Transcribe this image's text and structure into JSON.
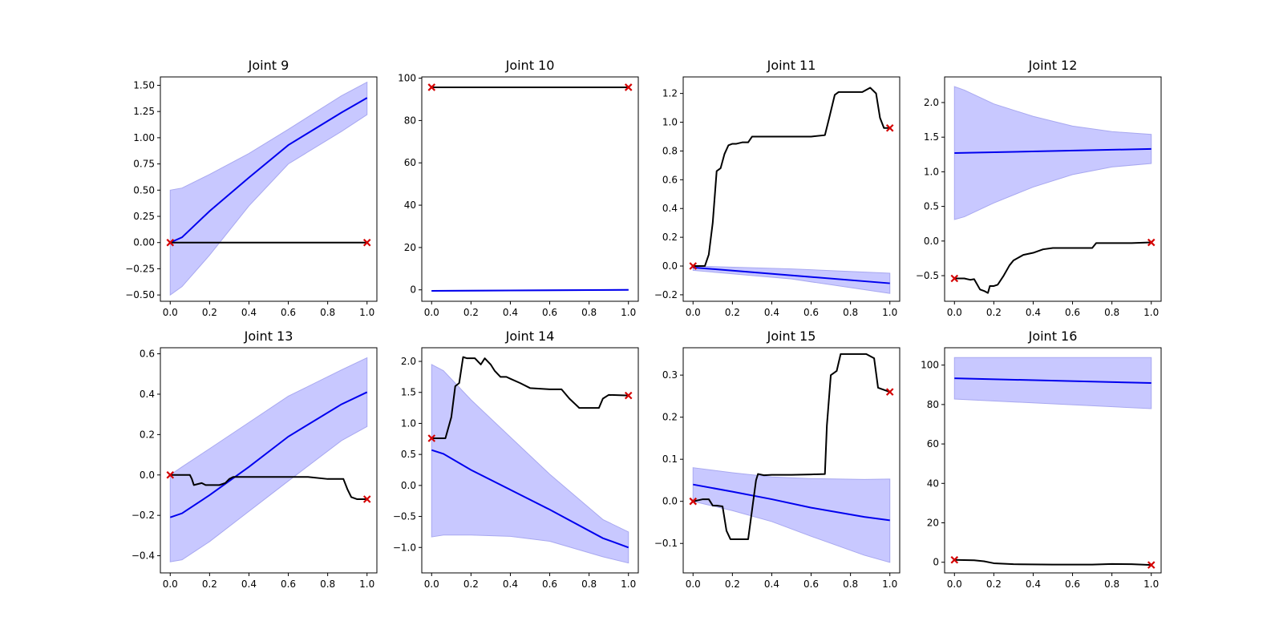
{
  "chart_data": [
    {
      "type": "line",
      "title": "Joint 9",
      "xlim": [
        -0.05,
        1.05
      ],
      "ylim": [
        -0.56,
        1.58
      ],
      "xticks": [
        0.0,
        0.2,
        0.4,
        0.6,
        0.8,
        1.0
      ],
      "xtick_labels": [
        "0.0",
        "0.2",
        "0.4",
        "0.6",
        "0.8",
        "1.0"
      ],
      "yticks": [
        -0.5,
        -0.25,
        0.0,
        0.25,
        0.5,
        0.75,
        1.0,
        1.25,
        1.5
      ],
      "ytick_labels": [
        "−0.50",
        "−0.25",
        "0.00",
        "0.25",
        "0.50",
        "0.75",
        "1.00",
        "1.25",
        "1.50"
      ],
      "mean": {
        "x": [
          0,
          0.06,
          0.2,
          0.4,
          0.6,
          0.87,
          1.0
        ],
        "y": [
          0.0,
          0.05,
          0.3,
          0.62,
          0.93,
          1.24,
          1.38
        ]
      },
      "band": {
        "x": [
          0,
          0.06,
          0.2,
          0.4,
          0.6,
          0.87,
          1.0
        ],
        "upper": [
          0.5,
          0.52,
          0.65,
          0.85,
          1.08,
          1.4,
          1.53
        ],
        "lower": [
          -0.5,
          -0.42,
          -0.12,
          0.35,
          0.75,
          1.06,
          1.22
        ]
      },
      "trajectory": {
        "x": [
          0,
          1.0
        ],
        "y": [
          0.0,
          0.0
        ]
      },
      "markers": {
        "x": [
          0,
          1.0
        ],
        "y": [
          0.0,
          0.0
        ]
      }
    },
    {
      "type": "line",
      "title": "Joint 10",
      "xlim": [
        -0.05,
        1.05
      ],
      "ylim": [
        -5.4,
        100.6
      ],
      "xticks": [
        0.0,
        0.2,
        0.4,
        0.6,
        0.8,
        1.0
      ],
      "xtick_labels": [
        "0.0",
        "0.2",
        "0.4",
        "0.6",
        "0.8",
        "1.0"
      ],
      "yticks": [
        0,
        20,
        40,
        60,
        80,
        100
      ],
      "ytick_labels": [
        "0",
        "20",
        "40",
        "60",
        "80",
        "100"
      ],
      "mean": {
        "x": [
          0,
          1.0
        ],
        "y": [
          -0.5,
          0.0
        ]
      },
      "band": {
        "x": [
          0,
          1.0
        ],
        "upper": [
          -0.3,
          0.2
        ],
        "lower": [
          -0.7,
          -0.2
        ]
      },
      "trajectory": {
        "x": [
          0,
          1.0
        ],
        "y": [
          95.7,
          95.7
        ]
      },
      "markers": {
        "x": [
          0,
          1.0
        ],
        "y": [
          95.7,
          95.7
        ]
      }
    },
    {
      "type": "line",
      "title": "Joint 11",
      "xlim": [
        -0.05,
        1.05
      ],
      "ylim": [
        -0.245,
        1.315
      ],
      "xticks": [
        0.0,
        0.2,
        0.4,
        0.6,
        0.8,
        1.0
      ],
      "xtick_labels": [
        "0.0",
        "0.2",
        "0.4",
        "0.6",
        "0.8",
        "1.0"
      ],
      "yticks": [
        -0.2,
        0.0,
        0.2,
        0.4,
        0.6,
        0.8,
        1.0,
        1.2
      ],
      "ytick_labels": [
        "−0.2",
        "0.0",
        "0.2",
        "0.4",
        "0.6",
        "0.8",
        "1.0",
        "1.2"
      ],
      "mean": {
        "x": [
          0,
          1.0
        ],
        "y": [
          -0.01,
          -0.12
        ]
      },
      "band": {
        "x": [
          0,
          0.5,
          1.0
        ],
        "upper": [
          0.0,
          -0.02,
          -0.05
        ],
        "lower": [
          -0.03,
          -0.09,
          -0.19
        ]
      },
      "trajectory": {
        "x": [
          0,
          0.06,
          0.08,
          0.1,
          0.12,
          0.14,
          0.16,
          0.18,
          0.2,
          0.22,
          0.25,
          0.28,
          0.3,
          0.32,
          0.35,
          0.4,
          0.5,
          0.6,
          0.67,
          0.69,
          0.72,
          0.74,
          0.8,
          0.86,
          0.9,
          0.93,
          0.95,
          0.97,
          1.0
        ],
        "y": [
          0.0,
          0.0,
          0.08,
          0.3,
          0.66,
          0.68,
          0.78,
          0.84,
          0.85,
          0.85,
          0.86,
          0.86,
          0.9,
          0.9,
          0.9,
          0.9,
          0.9,
          0.9,
          0.91,
          1.02,
          1.19,
          1.21,
          1.21,
          1.21,
          1.24,
          1.2,
          1.03,
          0.96,
          0.96
        ]
      },
      "markers": {
        "x": [
          0,
          1.0
        ],
        "y": [
          0.0,
          0.96
        ]
      }
    },
    {
      "type": "line",
      "title": "Joint 12",
      "xlim": [
        -0.05,
        1.05
      ],
      "ylim": [
        -0.87,
        2.37
      ],
      "xticks": [
        0.0,
        0.2,
        0.4,
        0.6,
        0.8,
        1.0
      ],
      "xtick_labels": [
        "0.0",
        "0.2",
        "0.4",
        "0.6",
        "0.8",
        "1.0"
      ],
      "yticks": [
        -0.5,
        0.0,
        0.5,
        1.0,
        1.5,
        2.0
      ],
      "ytick_labels": [
        "−0.5",
        "0.0",
        "0.5",
        "1.0",
        "1.5",
        "2.0"
      ],
      "mean": {
        "x": [
          0,
          1.0
        ],
        "y": [
          1.27,
          1.33
        ]
      },
      "band": {
        "x": [
          0,
          0.05,
          0.2,
          0.4,
          0.6,
          0.8,
          1.0
        ],
        "upper": [
          2.23,
          2.18,
          1.98,
          1.8,
          1.66,
          1.58,
          1.54
        ],
        "lower": [
          0.31,
          0.35,
          0.55,
          0.78,
          0.96,
          1.07,
          1.12
        ]
      },
      "trajectory": {
        "x": [
          0,
          0.05,
          0.08,
          0.1,
          0.13,
          0.15,
          0.17,
          0.18,
          0.2,
          0.22,
          0.25,
          0.28,
          0.3,
          0.35,
          0.4,
          0.45,
          0.5,
          0.6,
          0.7,
          0.72,
          0.8,
          0.9,
          1.0
        ],
        "y": [
          -0.54,
          -0.54,
          -0.56,
          -0.55,
          -0.7,
          -0.72,
          -0.75,
          -0.65,
          -0.65,
          -0.63,
          -0.5,
          -0.35,
          -0.28,
          -0.2,
          -0.17,
          -0.12,
          -0.1,
          -0.1,
          -0.1,
          -0.03,
          -0.03,
          -0.03,
          -0.02
        ]
      },
      "markers": {
        "x": [
          0,
          1.0
        ],
        "y": [
          -0.54,
          -0.02
        ]
      }
    },
    {
      "type": "line",
      "title": "Joint 13",
      "xlim": [
        -0.05,
        1.05
      ],
      "ylim": [
        -0.485,
        0.63
      ],
      "xticks": [
        0.0,
        0.2,
        0.4,
        0.6,
        0.8,
        1.0
      ],
      "xtick_labels": [
        "0.0",
        "0.2",
        "0.4",
        "0.6",
        "0.8",
        "1.0"
      ],
      "yticks": [
        -0.4,
        -0.2,
        0.0,
        0.2,
        0.4,
        0.6
      ],
      "ytick_labels": [
        "−0.4",
        "−0.2",
        "0.0",
        "0.2",
        "0.4",
        "0.6"
      ],
      "mean": {
        "x": [
          0,
          0.06,
          0.2,
          0.4,
          0.6,
          0.87,
          1.0
        ],
        "y": [
          -0.21,
          -0.19,
          -0.1,
          0.04,
          0.19,
          0.35,
          0.41
        ]
      },
      "band": {
        "x": [
          0,
          0.06,
          0.2,
          0.4,
          0.6,
          0.87,
          1.0
        ],
        "upper": [
          0.0,
          0.04,
          0.13,
          0.26,
          0.39,
          0.52,
          0.58
        ],
        "lower": [
          -0.43,
          -0.42,
          -0.33,
          -0.18,
          -0.03,
          0.17,
          0.24
        ]
      },
      "trajectory": {
        "x": [
          0,
          0.1,
          0.11,
          0.12,
          0.16,
          0.18,
          0.25,
          0.28,
          0.3,
          0.32,
          0.4,
          0.5,
          0.6,
          0.7,
          0.8,
          0.88,
          0.9,
          0.92,
          0.95,
          1.0
        ],
        "y": [
          0.0,
          0.0,
          -0.02,
          -0.05,
          -0.04,
          -0.05,
          -0.05,
          -0.04,
          -0.02,
          -0.01,
          -0.01,
          -0.01,
          -0.01,
          -0.01,
          -0.02,
          -0.02,
          -0.07,
          -0.11,
          -0.12,
          -0.12
        ]
      },
      "markers": {
        "x": [
          0,
          1.0
        ],
        "y": [
          0.0,
          -0.12
        ]
      }
    },
    {
      "type": "line",
      "title": "Joint 14",
      "xlim": [
        -0.05,
        1.05
      ],
      "ylim": [
        -1.41,
        2.22
      ],
      "xticks": [
        0.0,
        0.2,
        0.4,
        0.6,
        0.8,
        1.0
      ],
      "xtick_labels": [
        "0.0",
        "0.2",
        "0.4",
        "0.6",
        "0.8",
        "1.0"
      ],
      "yticks": [
        -1.0,
        -0.5,
        0.0,
        0.5,
        1.0,
        1.5,
        2.0
      ],
      "ytick_labels": [
        "−1.0",
        "−0.5",
        "0.0",
        "0.5",
        "1.0",
        "1.5",
        "2.0"
      ],
      "mean": {
        "x": [
          0,
          0.06,
          0.2,
          0.4,
          0.6,
          0.87,
          1.0
        ],
        "y": [
          0.57,
          0.51,
          0.25,
          -0.07,
          -0.39,
          -0.85,
          -1.0
        ]
      },
      "band": {
        "x": [
          0,
          0.06,
          0.2,
          0.4,
          0.6,
          0.87,
          1.0
        ],
        "upper": [
          1.95,
          1.85,
          1.38,
          0.78,
          0.18,
          -0.55,
          -0.75
        ],
        "lower": [
          -0.83,
          -0.8,
          -0.8,
          -0.82,
          -0.9,
          -1.15,
          -1.25
        ]
      },
      "trajectory": {
        "x": [
          0,
          0.07,
          0.1,
          0.12,
          0.14,
          0.16,
          0.18,
          0.2,
          0.22,
          0.25,
          0.27,
          0.3,
          0.32,
          0.35,
          0.38,
          0.4,
          0.45,
          0.5,
          0.6,
          0.66,
          0.7,
          0.75,
          0.8,
          0.85,
          0.87,
          0.9,
          1.0
        ],
        "y": [
          0.76,
          0.76,
          1.1,
          1.6,
          1.65,
          2.07,
          2.05,
          2.05,
          2.05,
          1.95,
          2.05,
          1.95,
          1.85,
          1.75,
          1.75,
          1.72,
          1.65,
          1.57,
          1.55,
          1.55,
          1.4,
          1.25,
          1.25,
          1.25,
          1.4,
          1.46,
          1.45
        ]
      },
      "markers": {
        "x": [
          0,
          1.0
        ],
        "y": [
          0.76,
          1.45
        ]
      }
    },
    {
      "type": "line",
      "title": "Joint 15",
      "xlim": [
        -0.05,
        1.05
      ],
      "ylim": [
        -0.17,
        0.365
      ],
      "xticks": [
        0.0,
        0.2,
        0.4,
        0.6,
        0.8,
        1.0
      ],
      "xtick_labels": [
        "0.0",
        "0.2",
        "0.4",
        "0.6",
        "0.8",
        "1.0"
      ],
      "yticks": [
        -0.1,
        0.0,
        0.1,
        0.2,
        0.3
      ],
      "ytick_labels": [
        "−0.1",
        "0.0",
        "0.1",
        "0.2",
        "0.3"
      ],
      "mean": {
        "x": [
          0,
          0.2,
          0.4,
          0.6,
          0.87,
          1.0
        ],
        "y": [
          0.04,
          0.023,
          0.005,
          -0.015,
          -0.037,
          -0.045
        ]
      },
      "band": {
        "x": [
          0,
          0.2,
          0.4,
          0.6,
          0.87,
          1.0
        ],
        "upper": [
          0.08,
          0.068,
          0.058,
          0.054,
          0.052,
          0.053
        ],
        "lower": [
          0.0,
          -0.022,
          -0.048,
          -0.083,
          -0.128,
          -0.145
        ]
      },
      "trajectory": {
        "x": [
          0,
          0.05,
          0.08,
          0.1,
          0.12,
          0.15,
          0.17,
          0.19,
          0.2,
          0.28,
          0.3,
          0.32,
          0.33,
          0.36,
          0.4,
          0.5,
          0.6,
          0.67,
          0.68,
          0.7,
          0.73,
          0.75,
          0.85,
          0.88,
          0.92,
          0.94,
          1.0
        ],
        "y": [
          0.0,
          0.005,
          0.005,
          -0.01,
          -0.01,
          -0.012,
          -0.07,
          -0.09,
          -0.09,
          -0.09,
          -0.02,
          0.05,
          0.065,
          0.062,
          0.063,
          0.063,
          0.064,
          0.065,
          0.18,
          0.3,
          0.31,
          0.35,
          0.35,
          0.35,
          0.34,
          0.27,
          0.26
        ]
      },
      "markers": {
        "x": [
          0,
          1.0
        ],
        "y": [
          0.0,
          0.26
        ]
      }
    },
    {
      "type": "line",
      "title": "Joint 16",
      "xlim": [
        -0.05,
        1.05
      ],
      "ylim": [
        -5.4,
        108.8
      ],
      "xticks": [
        0.0,
        0.2,
        0.4,
        0.6,
        0.8,
        1.0
      ],
      "xtick_labels": [
        "0.0",
        "0.2",
        "0.4",
        "0.6",
        "0.8",
        "1.0"
      ],
      "yticks": [
        0,
        20,
        40,
        60,
        80,
        100
      ],
      "ytick_labels": [
        "0",
        "20",
        "40",
        "60",
        "80",
        "100"
      ],
      "mean": {
        "x": [
          0,
          1.0
        ],
        "y": [
          93.3,
          90.9
        ]
      },
      "band": {
        "x": [
          0,
          1.0
        ],
        "upper": [
          103.8,
          103.8
        ],
        "lower": [
          82.8,
          77.9
        ]
      },
      "trajectory": {
        "x": [
          0,
          0.1,
          0.15,
          0.2,
          0.3,
          0.5,
          0.7,
          0.8,
          0.9,
          1.0
        ],
        "y": [
          1.2,
          1.0,
          0.5,
          -0.5,
          -1.0,
          -1.2,
          -1.2,
          -0.9,
          -1.0,
          -1.4
        ]
      },
      "markers": {
        "x": [
          0,
          1.0
        ],
        "y": [
          1.2,
          -1.4
        ]
      }
    }
  ],
  "colors": {
    "mean_line": "#0000ee",
    "band_fill": "#c8c8ff",
    "band_edge": "#a8a8f0",
    "trajectory": "#000000",
    "marker": "#d40000"
  }
}
